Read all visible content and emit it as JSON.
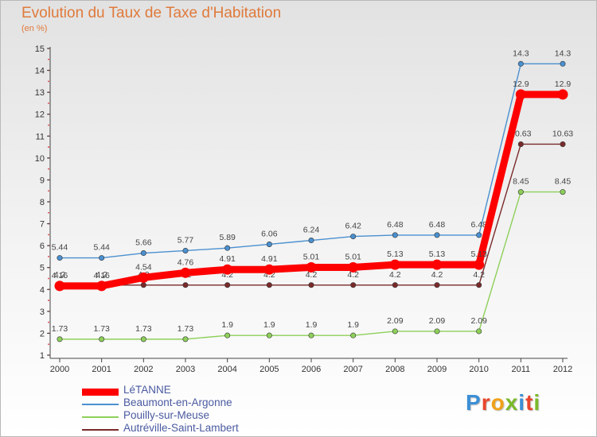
{
  "header": {
    "title": "Evolution du Taux de Taxe d'Habitation",
    "subtitle": "(en %)"
  },
  "logo": {
    "text": "Proxiti",
    "letter_colors": [
      "#3b8fd6",
      "#e8452c",
      "#f0a21a",
      "#7ab92a",
      "#3b8fd6",
      "#e8452c",
      "#7ab92a"
    ]
  },
  "chart_data": {
    "type": "line",
    "title": "Evolution du Taux de Taxe d'Habitation",
    "subtitle": "(en %)",
    "xlabel": "",
    "ylabel": "",
    "x": [
      "2000",
      "2001",
      "2002",
      "2003",
      "2004",
      "2005",
      "2006",
      "2007",
      "2008",
      "2009",
      "2010",
      "2011",
      "2012"
    ],
    "ylim": [
      1,
      15
    ],
    "yticks": [
      1,
      2,
      3,
      4,
      5,
      6,
      7,
      8,
      9,
      10,
      11,
      12,
      13,
      14,
      15
    ],
    "ytick_labels": [
      "1",
      "2",
      "3",
      "4",
      "5",
      "6",
      "7",
      "8",
      "9",
      "10",
      "11",
      "12",
      "13",
      "14",
      "15"
    ],
    "grid": false,
    "legend_position": "bottom-left",
    "series": [
      {
        "name": "LéTANNE",
        "color": "#ff0000",
        "emphasis": true,
        "values": [
          4.16,
          4.16,
          4.54,
          4.76,
          4.91,
          4.91,
          5.01,
          5.01,
          5.13,
          5.13,
          5.13,
          12.9,
          12.9
        ],
        "labels": [
          "4.16",
          "4.16",
          "4.54",
          "4.76",
          "4.91",
          "4.91",
          "5.01",
          "5.01",
          "5.13",
          "5.13",
          "5.13",
          "12.9",
          "12.9"
        ]
      },
      {
        "name": "Beaumont-en-Argonne",
        "color": "#4a90d0",
        "emphasis": false,
        "values": [
          5.44,
          5.44,
          5.66,
          5.77,
          5.89,
          6.06,
          6.24,
          6.42,
          6.48,
          6.48,
          6.48,
          14.3,
          14.3
        ],
        "labels": [
          "5.44",
          "5.44",
          "5.66",
          "5.77",
          "5.89",
          "6.06",
          "6.24",
          "6.42",
          "6.48",
          "6.48",
          "6.48",
          "14.3",
          "14.3"
        ]
      },
      {
        "name": "Pouilly-sur-Meuse",
        "color": "#8ed05a",
        "emphasis": false,
        "values": [
          1.73,
          1.73,
          1.73,
          1.73,
          1.9,
          1.9,
          1.9,
          1.9,
          2.09,
          2.09,
          2.09,
          8.45,
          8.45
        ],
        "labels": [
          "1.73",
          "1.73",
          "1.73",
          "1.73",
          "1.9",
          "1.9",
          "1.9",
          "1.9",
          "2.09",
          "2.09",
          "2.09",
          "8.45",
          "8.45"
        ]
      },
      {
        "name": "Autréville-Saint-Lambert",
        "color": "#7a2a2a",
        "emphasis": false,
        "values": [
          4.2,
          4.2,
          4.2,
          4.2,
          4.2,
          4.2,
          4.2,
          4.2,
          4.2,
          4.2,
          4.2,
          10.63,
          10.63
        ],
        "labels": [
          "4.2",
          "4.2",
          "4.2",
          "4.2",
          "4.2",
          "4.2",
          "4.2",
          "4.2",
          "4.2",
          "4.2",
          "4.2",
          "10.63",
          "10.63"
        ]
      }
    ]
  }
}
